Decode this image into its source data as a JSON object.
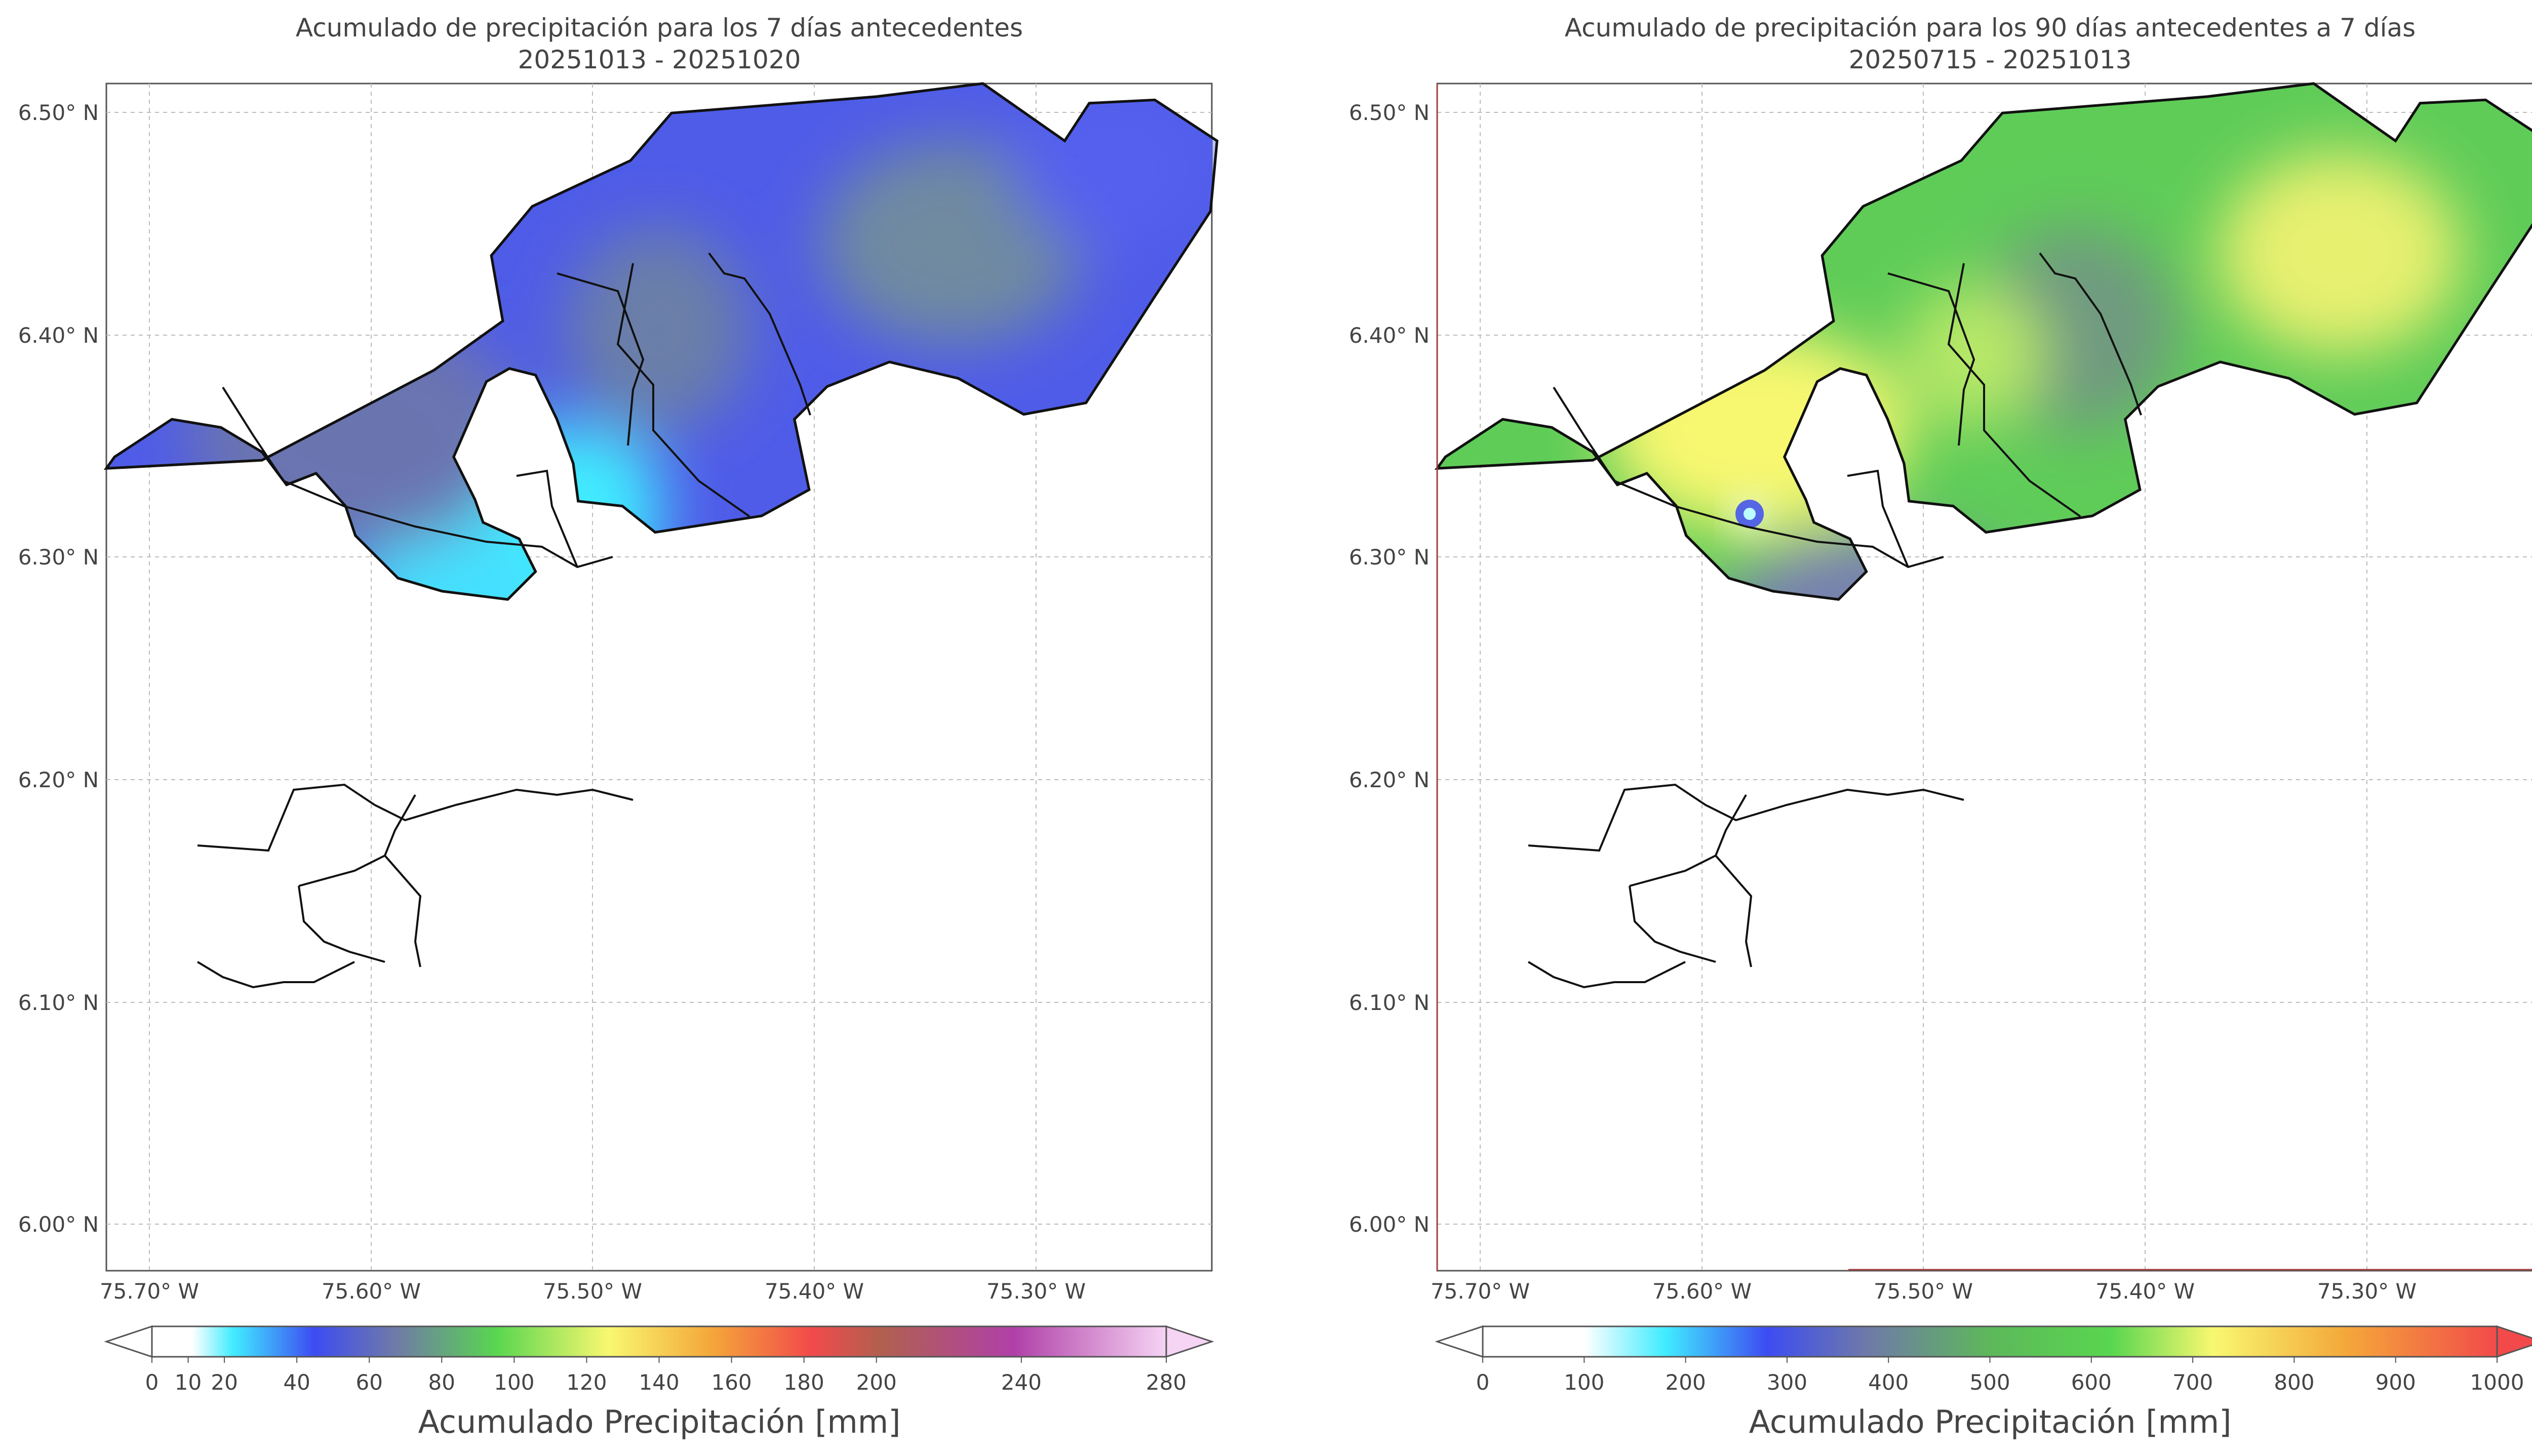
{
  "panels": [
    {
      "title_line1": "Acumulado de precipitación para los 7 días antecedentes",
      "title_line2": "20251013 - 20251020",
      "lat_ticks": [
        "6.50° N",
        "6.40° N",
        "6.30° N",
        "6.20° N",
        "6.10° N",
        "6.00° N"
      ],
      "lon_ticks": [
        "75.70° W",
        "75.60° W",
        "75.50° W",
        "75.40° W",
        "75.30° W"
      ],
      "colorbar": {
        "label": "Acumulado Precipitación [mm]",
        "ticks": [
          "0",
          "10",
          "20",
          "40",
          "60",
          "80",
          "100",
          "120",
          "140",
          "160",
          "180",
          "200",
          "240",
          "280"
        ],
        "tick_values": [
          0,
          10,
          20,
          40,
          60,
          80,
          100,
          120,
          140,
          160,
          180,
          200,
          240,
          280
        ],
        "range": [
          0,
          280
        ],
        "extend": "both"
      }
    },
    {
      "title_line1": "Acumulado de precipitación para los 90 días antecedentes a 7 días",
      "title_line2": "20250715 - 20251013",
      "lat_ticks": [
        "6.50° N",
        "6.40° N",
        "6.30° N",
        "6.20° N",
        "6.10° N",
        "6.00° N"
      ],
      "lon_ticks": [
        "75.70° W",
        "75.60° W",
        "75.50° W",
        "75.40° W",
        "75.30° W"
      ],
      "colorbar": {
        "label": "Acumulado Precipitación [mm]",
        "ticks": [
          "0",
          "100",
          "200",
          "300",
          "400",
          "500",
          "600",
          "700",
          "800",
          "900",
          "1000"
        ],
        "tick_values": [
          0,
          100,
          200,
          300,
          400,
          500,
          600,
          700,
          800,
          900,
          1000
        ],
        "range": [
          0,
          1000
        ],
        "extend": "both"
      }
    }
  ],
  "colors": {
    "cyan": "#40ecff",
    "blue": "#3d4cf2",
    "slate": "#6f7aa8",
    "green": "#59d64f",
    "yellow": "#f8f870",
    "orange": "#f4a83a",
    "red": "#f24a4a",
    "purple": "#b040a8",
    "pink": "#f6d4f4"
  }
}
